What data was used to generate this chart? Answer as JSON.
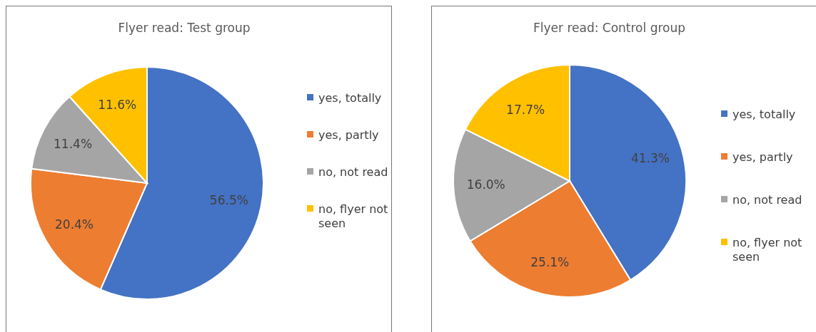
{
  "chart_data": [
    {
      "type": "pie",
      "title": "Flyer read: Test group",
      "categories": [
        "yes, totally",
        "yes, partly",
        "no, not read",
        "no, flyer not seen"
      ],
      "values": [
        56.5,
        20.4,
        11.4,
        11.6
      ],
      "value_labels": [
        "56.5%",
        "20.4%",
        "11.4%",
        "11.6%"
      ],
      "colors": [
        "#4472c4",
        "#ed7d31",
        "#a5a5a5",
        "#ffc000"
      ],
      "legend": "right"
    },
    {
      "type": "pie",
      "title": "Flyer read: Control group",
      "categories": [
        "yes, totally",
        "yes, partly",
        "no, not read",
        "no, flyer not seen"
      ],
      "values": [
        41.3,
        25.1,
        16.0,
        17.7
      ],
      "value_labels": [
        "41.3%",
        "25.1%",
        "16.0%",
        "17.7%"
      ],
      "colors": [
        "#4472c4",
        "#ed7d31",
        "#a5a5a5",
        "#ffc000"
      ],
      "legend": "right"
    }
  ]
}
